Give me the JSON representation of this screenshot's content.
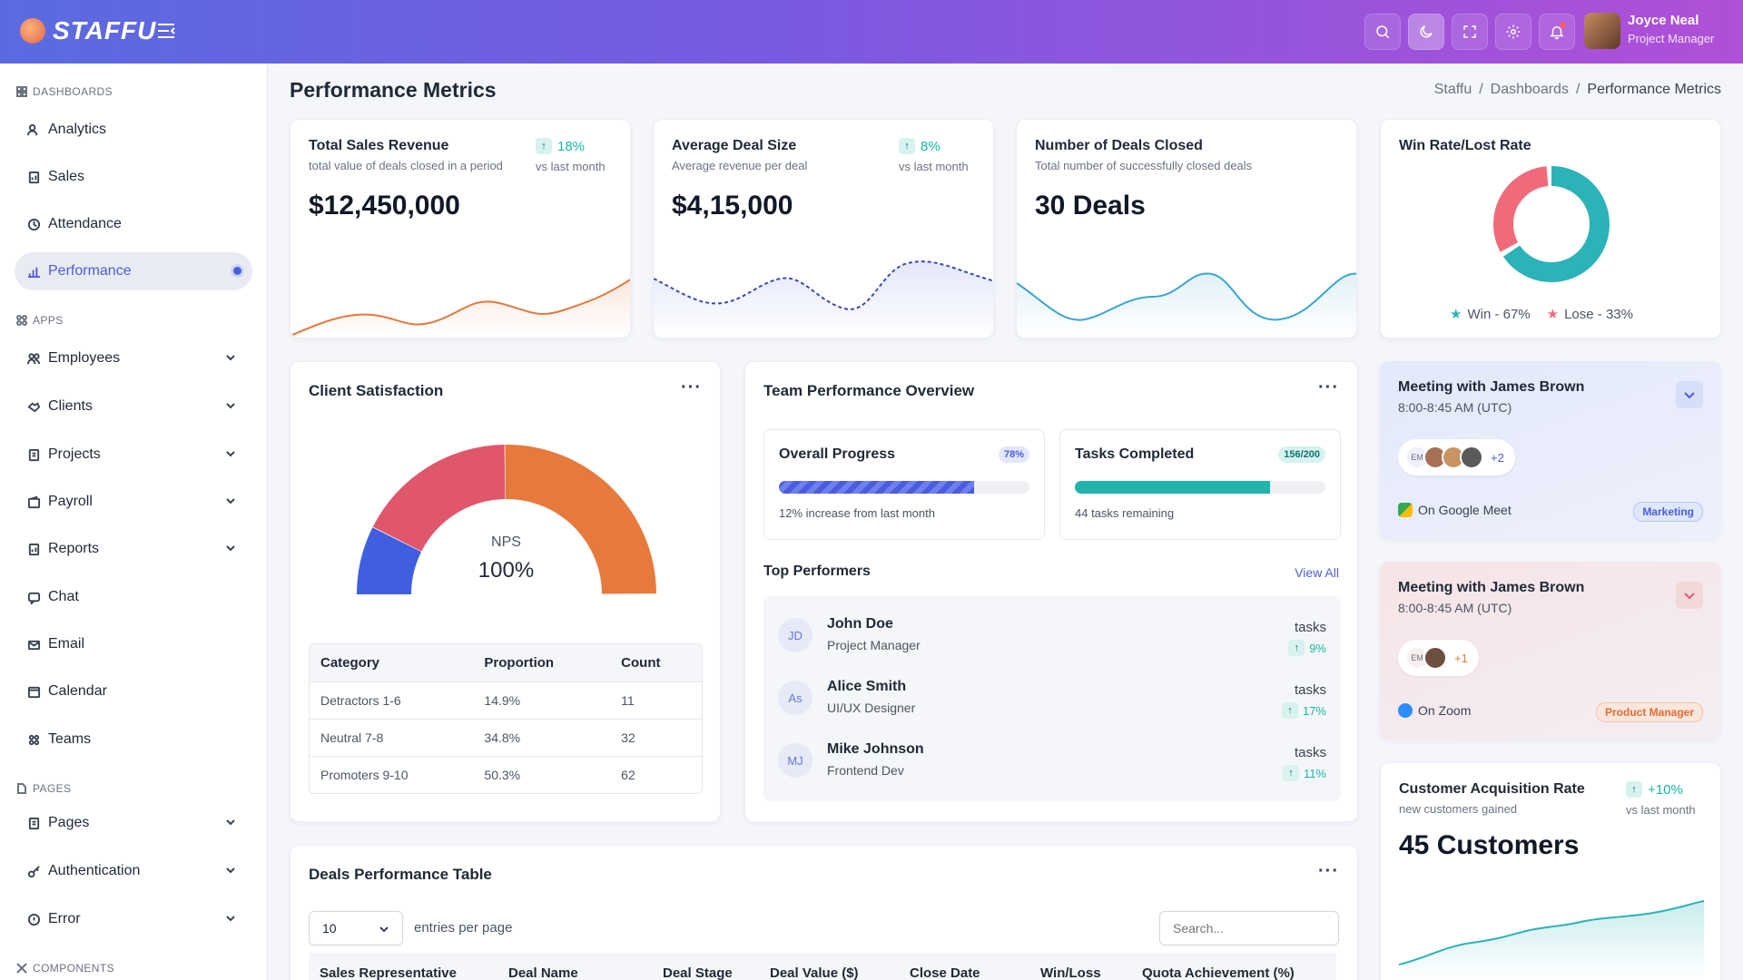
{
  "brand": {
    "name": "STAFFU"
  },
  "user": {
    "name": "Joyce Neal",
    "role": "Project Manager"
  },
  "sidebar": {
    "sections": {
      "dashboards": "DASHBOARDS",
      "apps": "APPS",
      "pages": "PAGES",
      "components": "COMPONENTS"
    },
    "items": [
      {
        "label": "Analytics"
      },
      {
        "label": "Sales"
      },
      {
        "label": "Attendance"
      },
      {
        "label": "Performance"
      },
      {
        "label": "Employees"
      },
      {
        "label": "Clients"
      },
      {
        "label": "Projects"
      },
      {
        "label": "Payroll"
      },
      {
        "label": "Reports"
      },
      {
        "label": "Chat"
      },
      {
        "label": "Email"
      },
      {
        "label": "Calendar"
      },
      {
        "label": "Teams"
      },
      {
        "label": "Pages"
      },
      {
        "label": "Authentication"
      },
      {
        "label": "Error"
      }
    ]
  },
  "header": {
    "title": "Performance Metrics",
    "breadcrumb": [
      "Staffu",
      "Dashboards",
      "Performance Metrics"
    ]
  },
  "kpis": [
    {
      "title": "Total Sales Revenue",
      "subtitle": "total value of deals closed in a period",
      "value": "$12,450,000",
      "change": "18%",
      "vs": "vs last month",
      "color": "#e07a3f"
    },
    {
      "title": "Average Deal Size",
      "subtitle": "Average revenue per deal",
      "value": "$4,15,000",
      "change": "8%",
      "vs": "vs last month",
      "color": "#4b5ddd"
    },
    {
      "title": "Number of Deals Closed",
      "subtitle": "Total number of successfully closed deals",
      "value": "30 Deals",
      "color": "#3aa6d0"
    }
  ],
  "winrate": {
    "title": "Win Rate/Lost Rate",
    "win_label": "Win - 67%",
    "lose_label": "Lose - 33%",
    "win_pct": 67,
    "lose_pct": 33,
    "win_color": "#2bb3b8",
    "lose_color": "#ef6b7b"
  },
  "satisfaction": {
    "title": "Client Satisfaction",
    "center_label": "NPS",
    "center_value": "100%",
    "segments": [
      {
        "name": "Detractors",
        "value": 14.9,
        "color": "#3f5fe0"
      },
      {
        "name": "Neutral",
        "value": 34.8,
        "color": "#e0566a"
      },
      {
        "name": "Promoters",
        "value": 50.3,
        "color": "#e67a3c"
      }
    ],
    "columns": [
      "Category",
      "Proportion",
      "Count"
    ],
    "rows": [
      [
        "Detractors 1-6",
        "14.9%",
        "11"
      ],
      [
        "Neutral 7-8",
        "34.8%",
        "32"
      ],
      [
        "Promoters 9-10",
        "50.3%",
        "62"
      ]
    ]
  },
  "team": {
    "title": "Team Performance Overview",
    "progress": {
      "title": "Overall Progress",
      "badge": "78%",
      "pct": 78,
      "note": "12% increase from last month"
    },
    "tasks": {
      "title": "Tasks Completed",
      "badge": "156/200",
      "pct": 78,
      "note": "44 tasks remaining"
    },
    "top_title": "Top Performers",
    "view_all": "View All",
    "performers": [
      {
        "initials": "JD",
        "name": "John Doe",
        "role": "Project Manager",
        "tasks": "tasks",
        "pct": "9%"
      },
      {
        "initials": "As",
        "name": "Alice Smith",
        "role": "UI/UX Designer",
        "tasks": "tasks",
        "pct": "17%"
      },
      {
        "initials": "MJ",
        "name": "Mike Johnson",
        "role": "Frontend Dev",
        "tasks": "tasks",
        "pct": "11%"
      }
    ]
  },
  "meetings": [
    {
      "title": "Meeting with James Brown",
      "time": "8:00-8:45 AM (UTC)",
      "avatar_initials": "EM",
      "more": "+2",
      "platform": "On Google Meet",
      "tag": "Marketing"
    },
    {
      "title": "Meeting with James Brown",
      "time": "8:00-8:45 AM (UTC)",
      "avatar_initials": "EM",
      "more": "+1",
      "platform": "On Zoom",
      "tag": "Product Manager"
    }
  ],
  "acquisition": {
    "title": "Customer Acquisition Rate",
    "subtitle": "new customers gained",
    "value": "45 Customers",
    "change": "+10%",
    "vs": "vs last month"
  },
  "deals": {
    "title": "Deals Performance Table",
    "entries": "10",
    "entries_label": "entries per page",
    "search_placeholder": "Search...",
    "columns": [
      "Sales Representative",
      "Deal Name",
      "Deal Stage",
      "Deal Value ($)",
      "Close Date",
      "Win/Loss",
      "Quota Achievement (%)"
    ]
  }
}
